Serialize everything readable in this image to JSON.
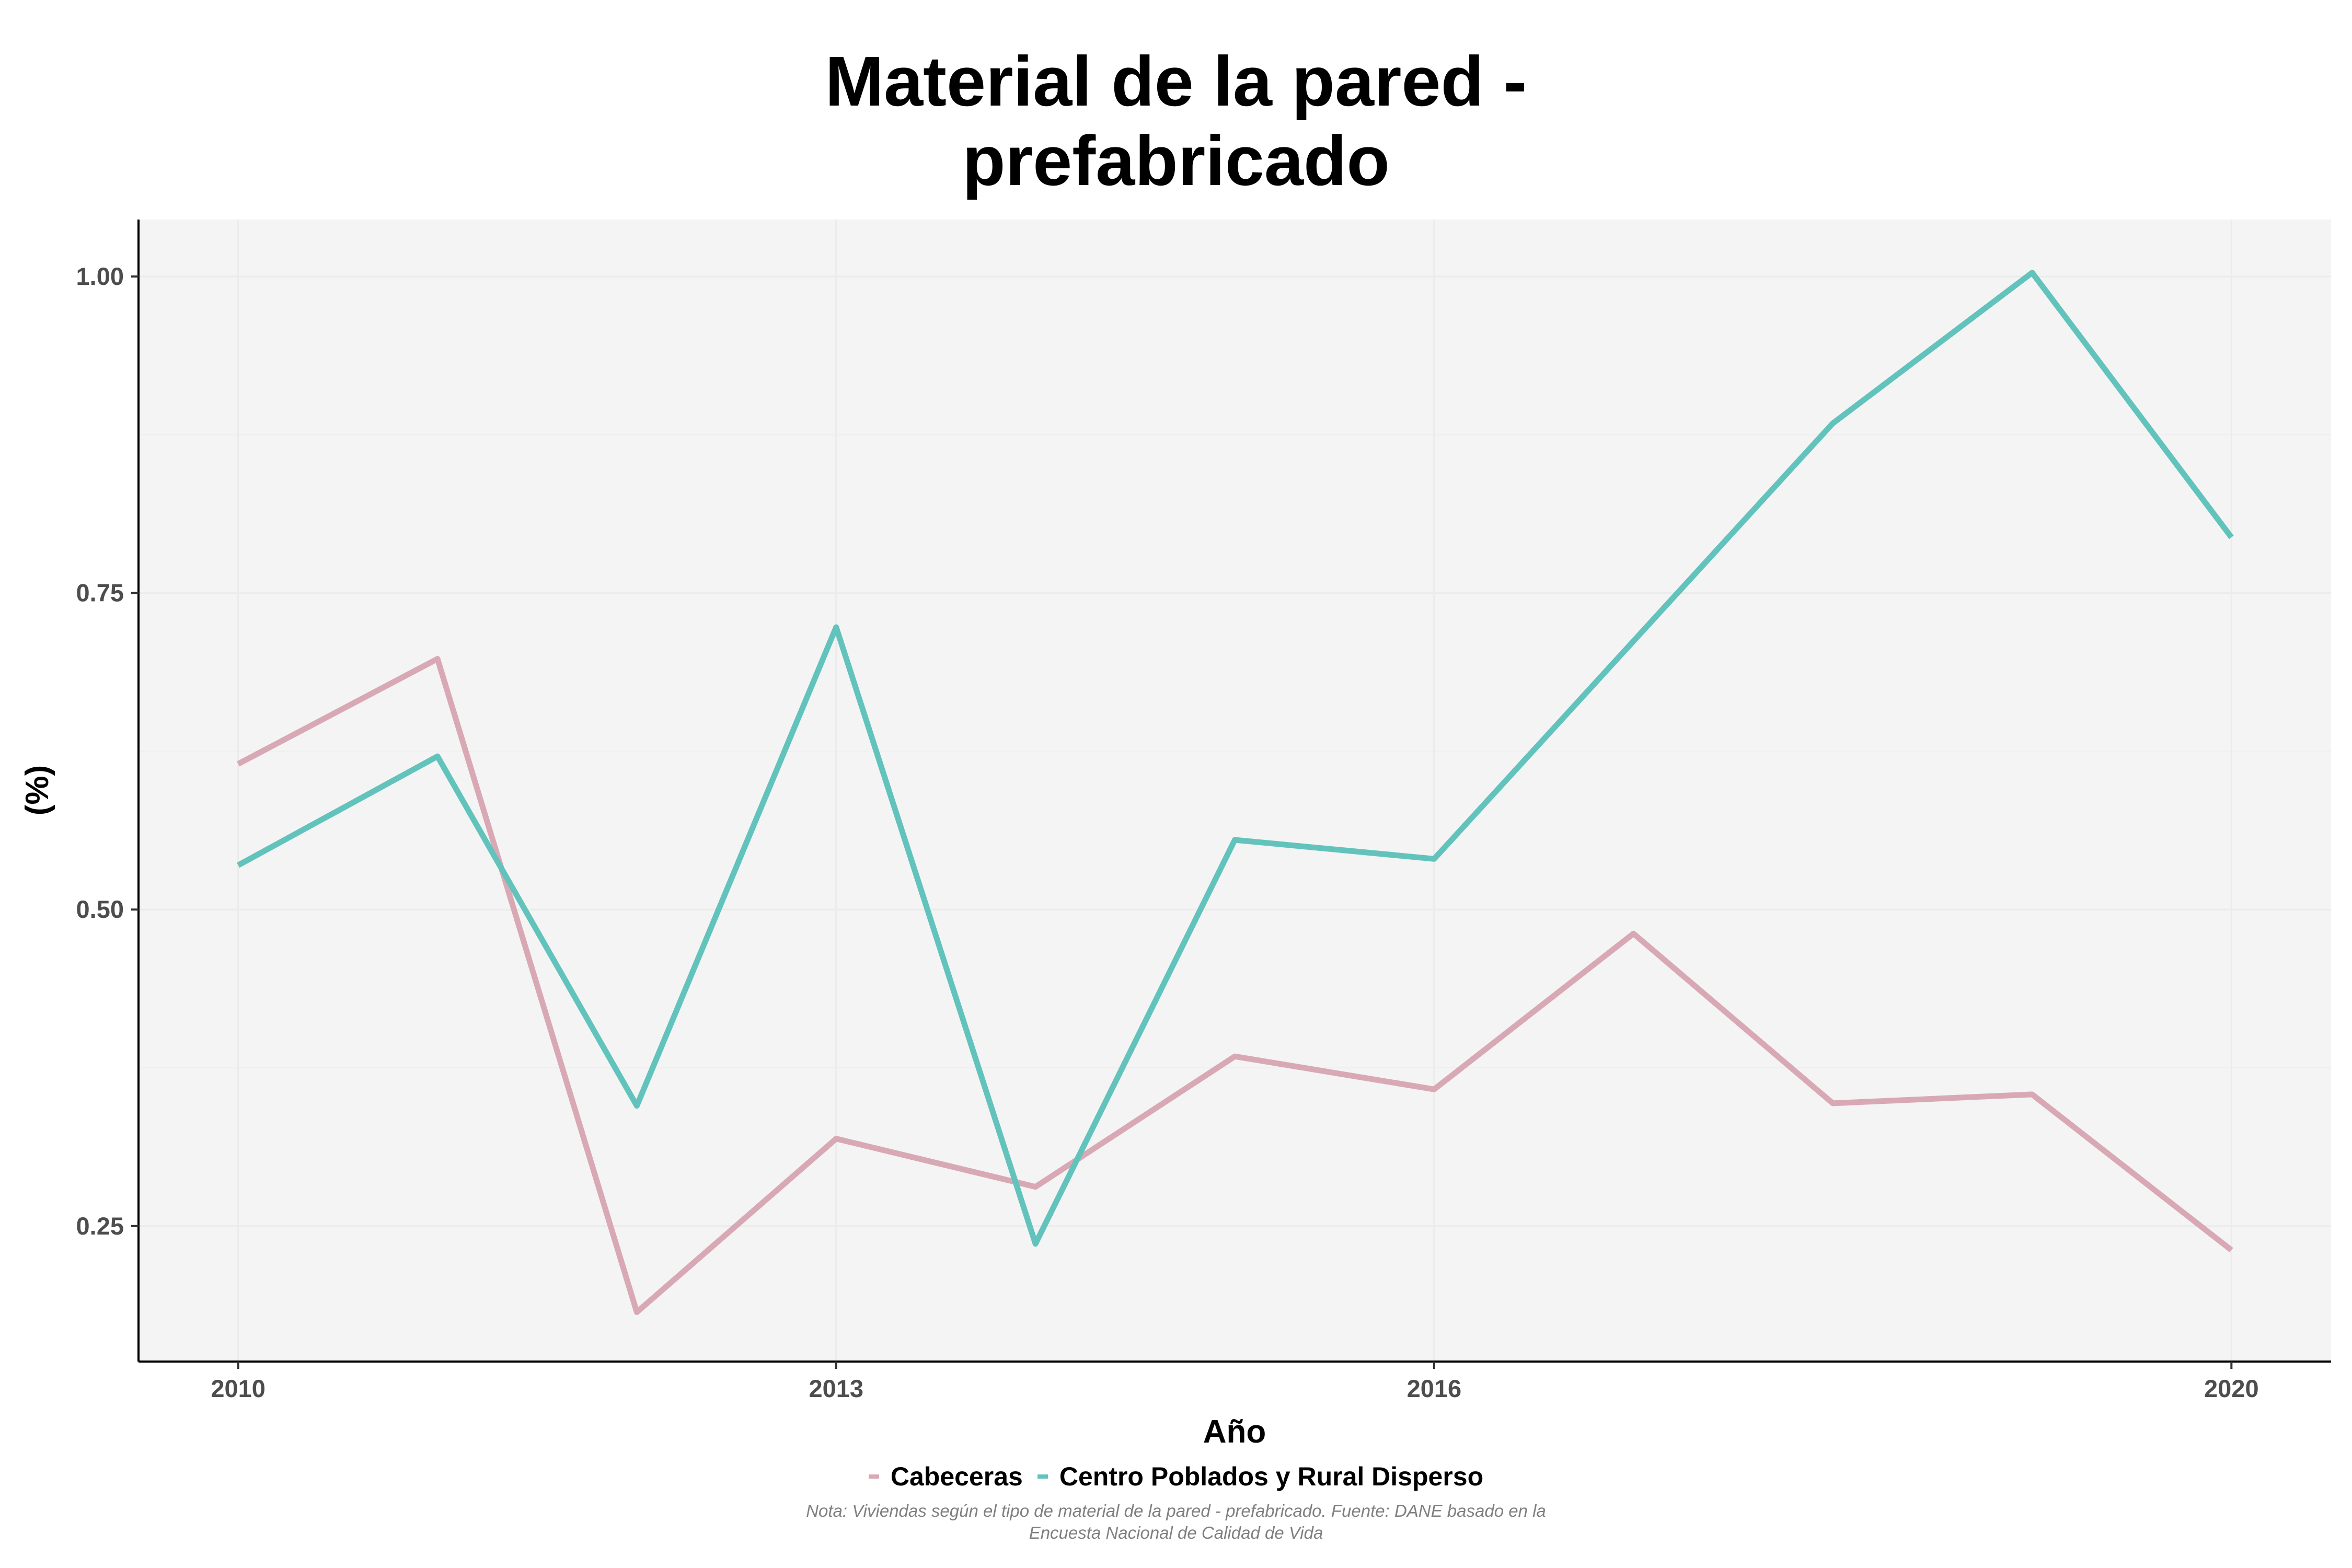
{
  "chart_data": {
    "type": "line",
    "title_lines": [
      "Material de la pared -",
      "prefabricado"
    ],
    "xlabel": "Año",
    "ylabel": "(%)",
    "x": [
      2010,
      2011,
      2012,
      2013,
      2014,
      2015,
      2016,
      2017,
      2018,
      2019,
      2020
    ],
    "xlim": [
      2009.5,
      2020.5
    ],
    "ylim": [
      0.143,
      1.045
    ],
    "x_ticks": [
      2010,
      2013,
      2016,
      2020
    ],
    "y_ticks": [
      0.25,
      0.5,
      0.75,
      1.0
    ],
    "y_tick_labels": [
      "0.25",
      "0.50",
      "0.75",
      "1.00"
    ],
    "grid": true,
    "legend_position": "bottom",
    "series": [
      {
        "name": "Cabeceras",
        "color": "#d8a9b4",
        "values": [
          0.615,
          0.698,
          0.182,
          0.319,
          0.281,
          0.384,
          0.358,
          0.481,
          0.347,
          0.354,
          0.231
        ]
      },
      {
        "name": "Centro Poblados y Rural Disperso",
        "color": "#62c3bc",
        "values": [
          0.535,
          0.621,
          0.345,
          0.723,
          0.236,
          0.555,
          0.54,
          0.712,
          0.884,
          1.003,
          0.794
        ]
      }
    ],
    "note_lines": [
      "Nota: Viviendas según el tipo de material de la pared - prefabricado. Fuente: DANE basado en la",
      "Encuesta Nacional de Calidad de Vida"
    ]
  }
}
